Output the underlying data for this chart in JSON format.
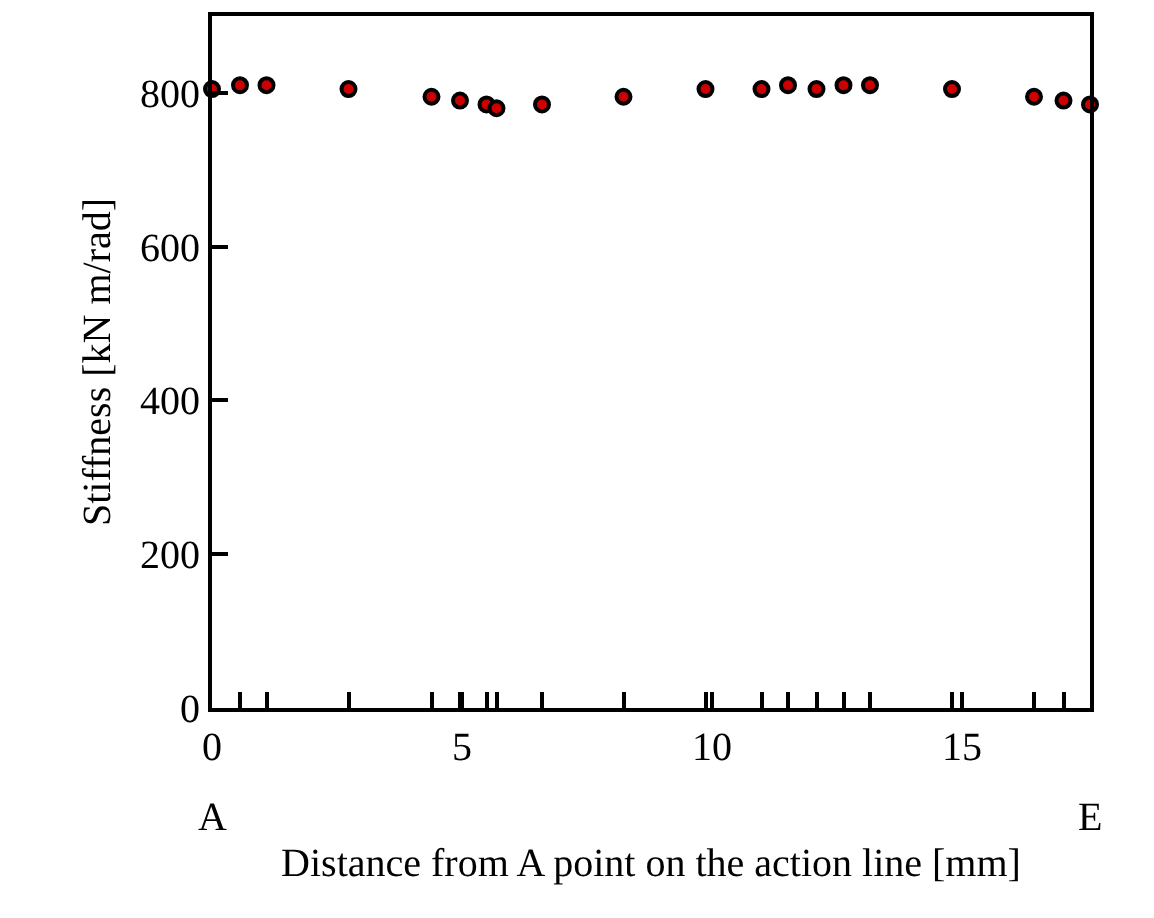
{
  "chart_data": {
    "type": "scatter",
    "xlabel": "Distance from A point on the action line [mm]",
    "ylabel": "Stiffness [kN m/rad]",
    "x": [
      0,
      0.56,
      1.09,
      2.73,
      4.39,
      4.96,
      5.49,
      5.69,
      6.6,
      8.23,
      9.87,
      10.99,
      11.52,
      12.09,
      12.63,
      13.16,
      14.8,
      16.44,
      17.03,
      17.56
    ],
    "series": [
      {
        "color": "#000000",
        "values": [
          805,
          810,
          810,
          805,
          795,
          790,
          785,
          780,
          785,
          795,
          805,
          805,
          810,
          805,
          810,
          810,
          805,
          795,
          790,
          785
        ]
      }
    ],
    "xlim": [
      0,
      17.56
    ],
    "xticks": [
      0,
      5,
      10,
      15,
      {
        "value": 0.56,
        "label": null
      },
      {
        "value": 1.09,
        "label": null
      },
      {
        "value": 2.73,
        "label": null
      },
      {
        "value": 4.39,
        "label": null
      },
      {
        "value": 4.96,
        "label": null
      },
      {
        "value": 5.49,
        "label": null
      },
      {
        "value": 5.69,
        "label": null
      },
      {
        "value": 6.6,
        "label": null
      },
      {
        "value": 8.23,
        "label": null
      },
      {
        "value": 9.87,
        "label": null
      },
      {
        "value": 10.99,
        "label": null
      },
      {
        "value": 11.52,
        "label": null
      },
      {
        "value": 12.09,
        "label": null
      },
      {
        "value": 12.63,
        "label": null
      },
      {
        "value": 13.16,
        "label": null
      },
      {
        "value": 14.8,
        "label": null
      },
      {
        "value": 16.44,
        "label": null
      },
      {
        "value": 17.03,
        "label": null
      }
    ],
    "ylim": [
      0,
      900
    ],
    "yticks": [
      0,
      200,
      400,
      600,
      800
    ],
    "marker": "circle",
    "grid": false,
    "annotations": [
      "A",
      "E"
    ]
  }
}
